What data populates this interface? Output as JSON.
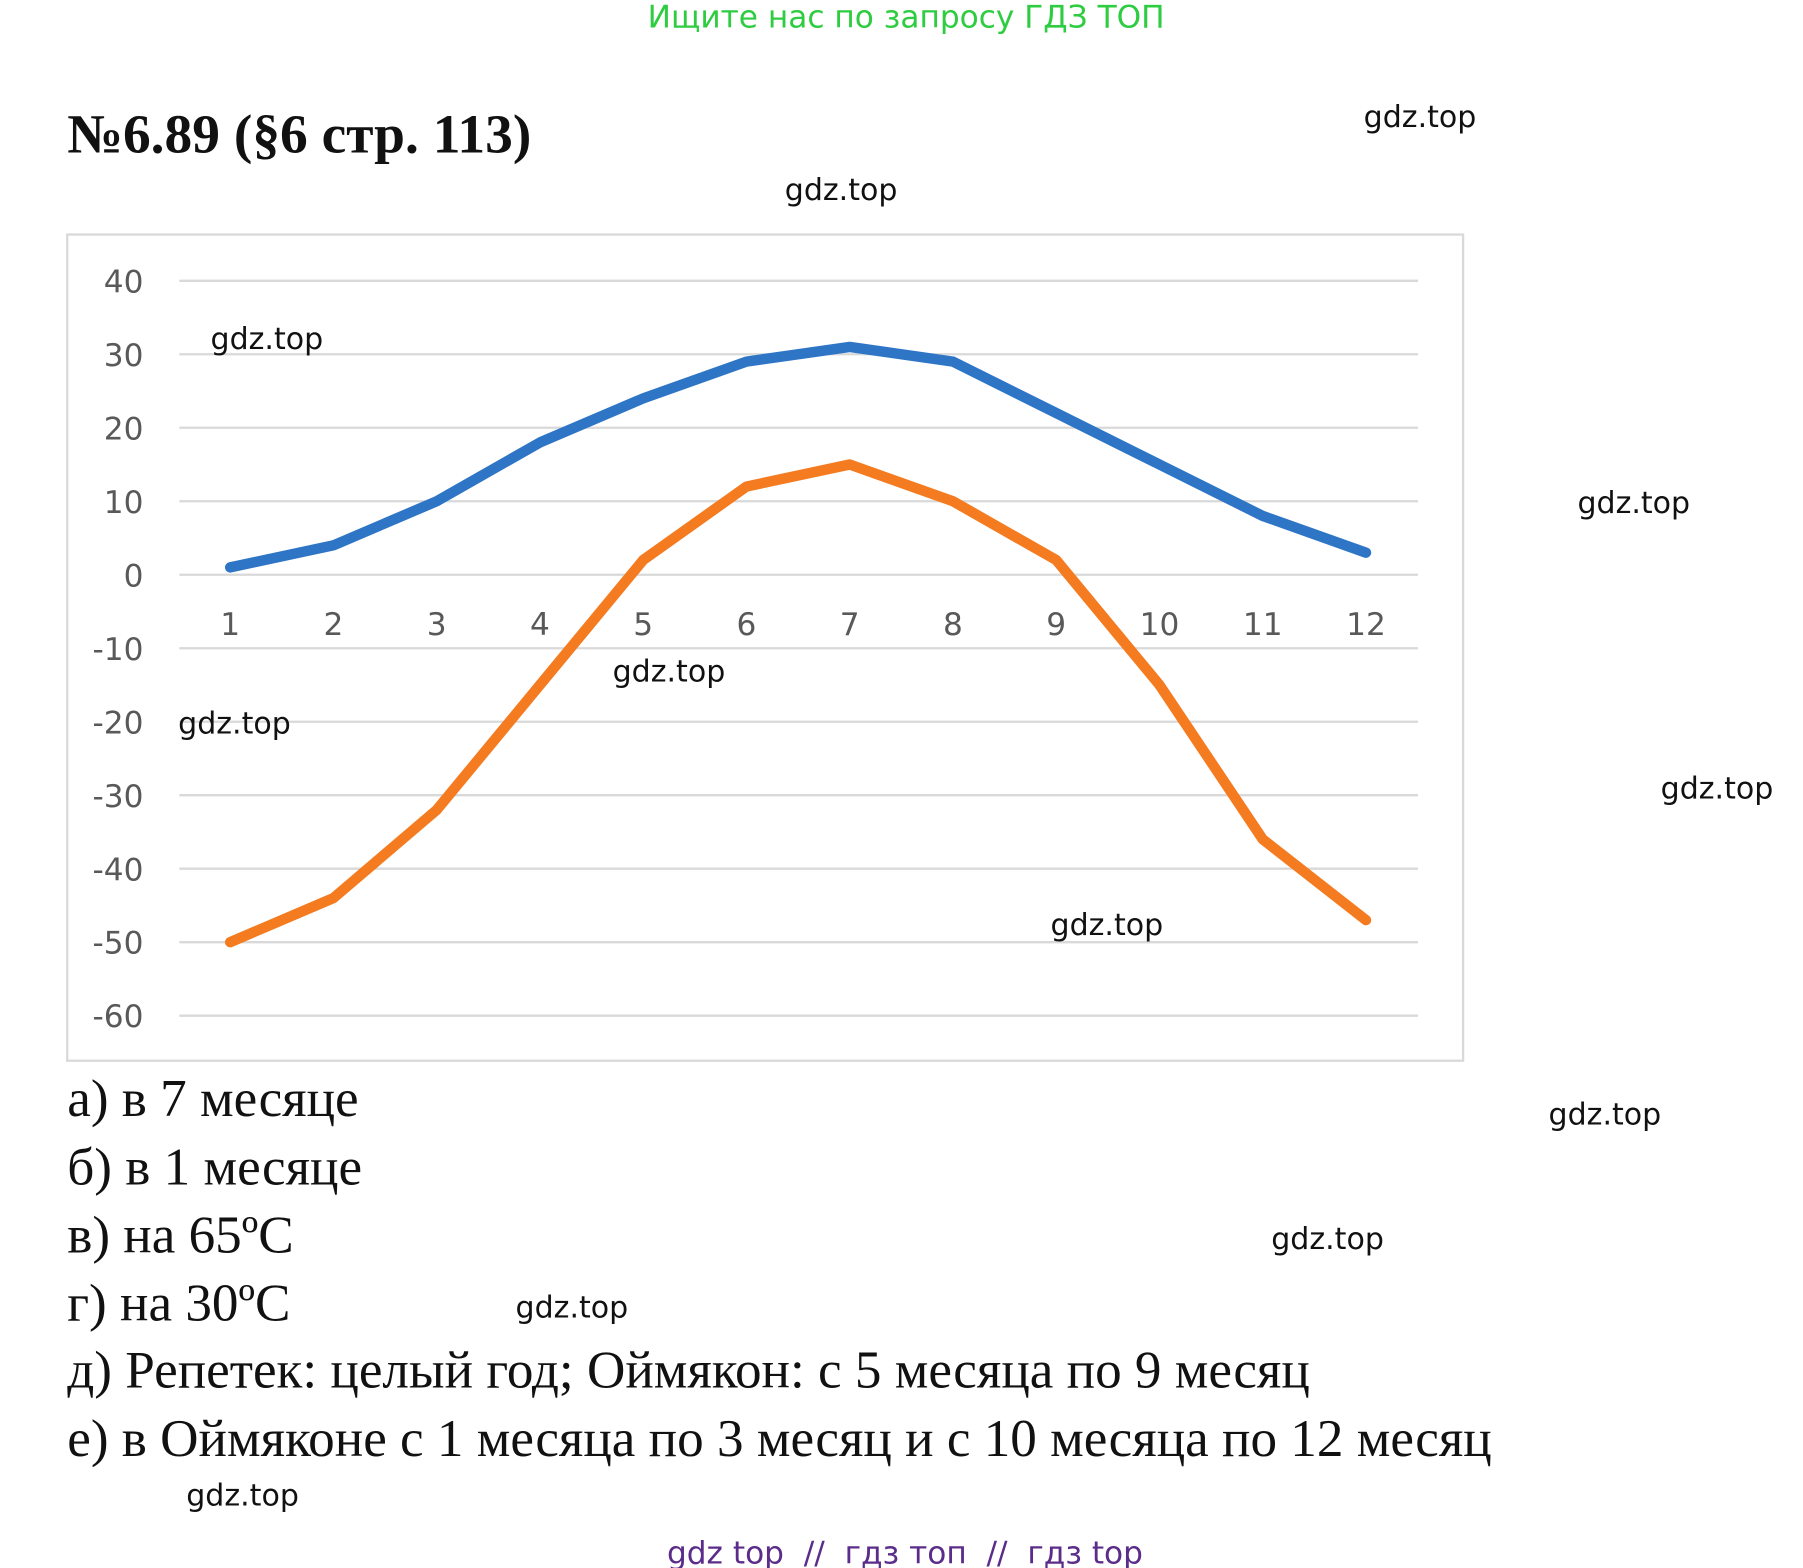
{
  "banner": "Ищите нас по запросу ГДЗ ТОП",
  "title": "№6.89 (§6 стр. 113)",
  "chart_data": {
    "type": "line",
    "categories": [
      "1",
      "2",
      "3",
      "4",
      "5",
      "6",
      "7",
      "8",
      "9",
      "10",
      "11",
      "12"
    ],
    "series": [
      {
        "color": "#2e75c6",
        "values": [
          1,
          4,
          10,
          18,
          24,
          29,
          31,
          29,
          22,
          15,
          8,
          3
        ]
      },
      {
        "color": "#f47b20",
        "values": [
          -50,
          -44,
          -32,
          -15,
          2,
          12,
          15,
          10,
          2,
          -15,
          -36,
          -47
        ]
      }
    ],
    "ylim": [
      -60,
      40
    ],
    "yticks": [
      -60,
      -50,
      -40,
      -30,
      -20,
      -10,
      0,
      10,
      20,
      30,
      40
    ],
    "grid": true
  },
  "answers": [
    "а) в 7 месяце",
    "б) в 1 месяце",
    "в) на 65ºC",
    "г) на 30ºC",
    "д) Репетек: целый год; Оймякон: с 5 месяца по 9 месяц",
    "е) в Оймяконе с 1 месяца по 3 месяц и с 10 месяца по 12 месяц"
  ],
  "watermarks": [
    "gdz.top",
    "gdz.top",
    "gdz.top",
    "gdz.top",
    "gdz.top",
    "gdz.top",
    "gdz.top",
    "gdz.top",
    "gdz.top",
    "gdz.top",
    "gdz.top",
    "gdz.top"
  ],
  "footer": "gdz top  //  гдз топ  //  гдз top"
}
